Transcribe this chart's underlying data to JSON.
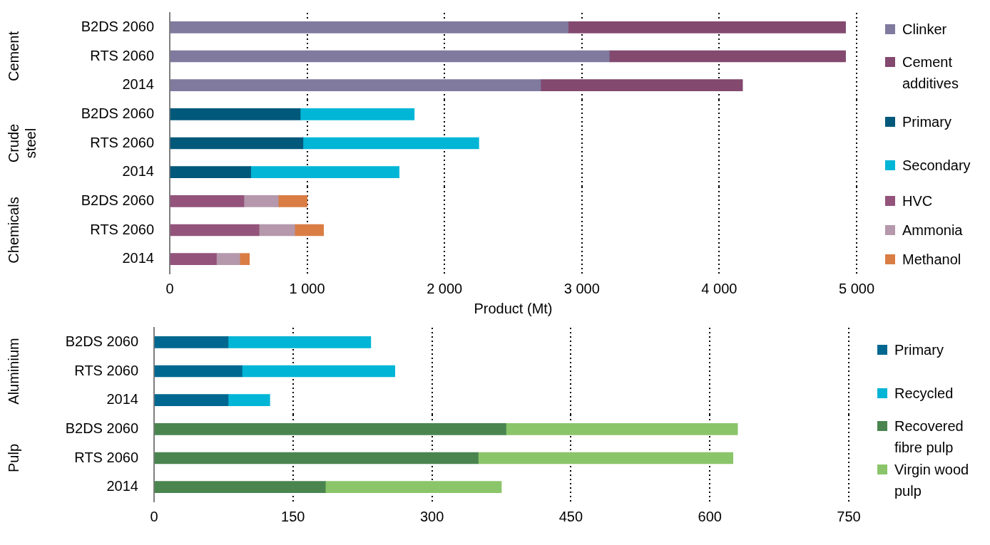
{
  "chart_data": [
    {
      "type": "bar",
      "orientation": "horizontal",
      "stacked": true,
      "ylabel": "Cement",
      "categories": [
        "B2DS 2060",
        "RTS 2060",
        "2014"
      ],
      "series": [
        {
          "name": "Clinker",
          "color": "#7f7a9e",
          "values": [
            2900,
            3200,
            2700
          ]
        },
        {
          "name": "Cement additives",
          "color": "#83496f",
          "values": [
            2020,
            1720,
            1470
          ]
        }
      ],
      "xlim": [
        0,
        5000
      ],
      "xticks": [
        0,
        1000,
        2000,
        3000,
        4000,
        5000
      ],
      "tick_labels": "y",
      "grid": "x",
      "legend": "right"
    },
    {
      "type": "bar",
      "orientation": "horizontal",
      "stacked": true,
      "ylabel": "Crude steel",
      "categories": [
        "B2DS 2060",
        "RTS 2060",
        "2014"
      ],
      "series": [
        {
          "name": "Primary",
          "color": "#00587a",
          "values": [
            950,
            970,
            590
          ]
        },
        {
          "name": "Secondary",
          "color": "#00b5d6",
          "values": [
            830,
            1280,
            1080
          ]
        }
      ],
      "xlim": [
        0,
        5000
      ],
      "xticks": [
        0,
        1000,
        2000,
        3000,
        4000,
        5000
      ],
      "tick_labels": "y",
      "grid": "x",
      "legend": "right"
    },
    {
      "type": "bar",
      "orientation": "horizontal",
      "stacked": true,
      "ylabel": "Chemicals",
      "xlabel": "Product (Mt)",
      "categories": [
        "B2DS 2060",
        "RTS 2060",
        "2014"
      ],
      "series": [
        {
          "name": "HVC",
          "color": "#93537b",
          "values": [
            540,
            650,
            340
          ]
        },
        {
          "name": "Ammonia",
          "color": "#b598ab",
          "values": [
            250,
            260,
            170
          ]
        },
        {
          "name": "Methanol",
          "color": "#da7d44",
          "values": [
            210,
            210,
            70
          ]
        }
      ],
      "xlim": [
        0,
        5000
      ],
      "xticks": [
        0,
        {
          "value": 1000,
          "label": "1 000"
        },
        {
          "value": 2000,
          "label": "2 000"
        },
        {
          "value": 3000,
          "label": "3 000"
        },
        {
          "value": 4000,
          "label": "4 000"
        },
        {
          "value": 5000,
          "label": "5 000"
        }
      ],
      "grid": "x",
      "legend": "right"
    },
    {
      "type": "bar",
      "orientation": "horizontal",
      "stacked": true,
      "ylabel": "Aluminium",
      "categories": [
        "B2DS 2060",
        "RTS 2060",
        "2014"
      ],
      "series": [
        {
          "name": "Primary",
          "color": "#006890",
          "values": [
            80,
            95,
            80
          ]
        },
        {
          "name": "Recycled",
          "color": "#00b5d6",
          "values": [
            154,
            165,
            45
          ]
        }
      ],
      "xlim": [
        0,
        750
      ],
      "xticks": [
        0,
        150,
        300,
        450,
        600,
        750
      ],
      "tick_labels": "y",
      "grid": "x",
      "legend": "right"
    },
    {
      "type": "bar",
      "orientation": "horizontal",
      "stacked": true,
      "ylabel": "Pulp",
      "categories": [
        "B2DS 2060",
        "RTS 2060",
        "2014"
      ],
      "series": [
        {
          "name": "Recovered fibre pulp",
          "color": "#4a8550",
          "values": [
            380,
            350,
            185
          ]
        },
        {
          "name": "Virgin wood pulp",
          "color": "#8bc56a",
          "values": [
            250,
            275,
            190
          ]
        }
      ],
      "xlim": [
        0,
        750
      ],
      "xticks": [
        0,
        150,
        300,
        450,
        600,
        750
      ],
      "grid": "x",
      "legend": "right"
    }
  ]
}
